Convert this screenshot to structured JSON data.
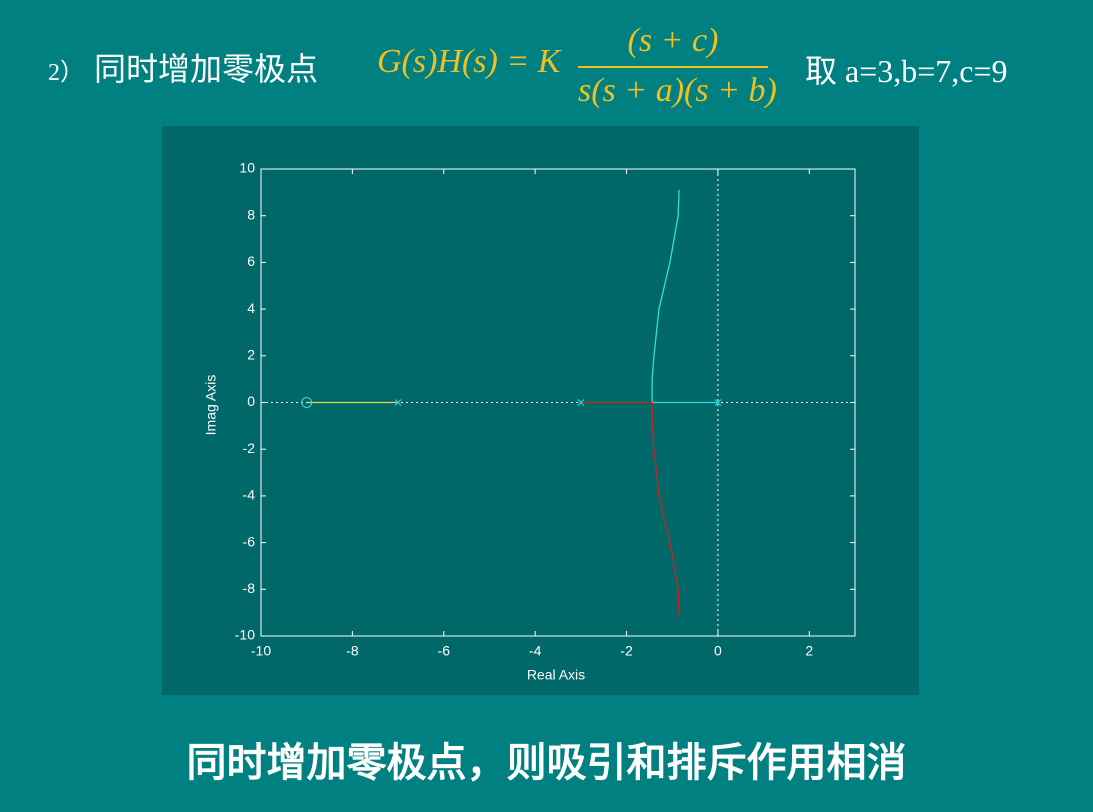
{
  "header": {
    "number": "2）",
    "text": "同时增加零极点",
    "formula_left": "G(s)H(s) = K",
    "numerator": "(s + c)",
    "denominator": "s(s + a)(s + b)",
    "params": "取 a=3,b=7,c=9"
  },
  "chart_data": {
    "type": "line",
    "xlabel": "Real Axis",
    "ylabel": "Imag Axis",
    "xlim": [
      -10,
      3
    ],
    "ylim": [
      -10,
      10
    ],
    "xticks": [
      -10,
      -8,
      -6,
      -4,
      -2,
      0,
      2
    ],
    "yticks": [
      -10,
      -8,
      -6,
      -4,
      -2,
      0,
      2,
      4,
      6,
      8,
      10
    ],
    "series": [
      {
        "color": "#e8d24a",
        "x": [
          -7,
          -9
        ],
        "values": [
          0,
          0
        ]
      },
      {
        "color": "#33dddd",
        "x": [
          0,
          -1.44,
          -1.44,
          -1.4,
          -1.29,
          -1.05,
          -0.87,
          -0.85
        ],
        "values": [
          0,
          0,
          1,
          2,
          4,
          6,
          8,
          9.1
        ]
      },
      {
        "color": "#cc2222",
        "x": [
          -3,
          -1.44,
          -1.44,
          -1.4,
          -1.29,
          -1.05,
          -0.87,
          -0.85
        ],
        "values": [
          0,
          0,
          -1,
          -2,
          -4,
          -6,
          -8,
          -9.2
        ]
      }
    ],
    "markers": [
      {
        "shape": "o",
        "color": "#33dddd",
        "x": [
          -9
        ],
        "values": [
          0
        ]
      },
      {
        "shape": "x",
        "color": "#33dddd",
        "x": [
          0,
          -3,
          -7
        ],
        "values": [
          0,
          0,
          0
        ]
      }
    ]
  },
  "footer": "同时增加零极点，则吸引和排斥作用相消"
}
